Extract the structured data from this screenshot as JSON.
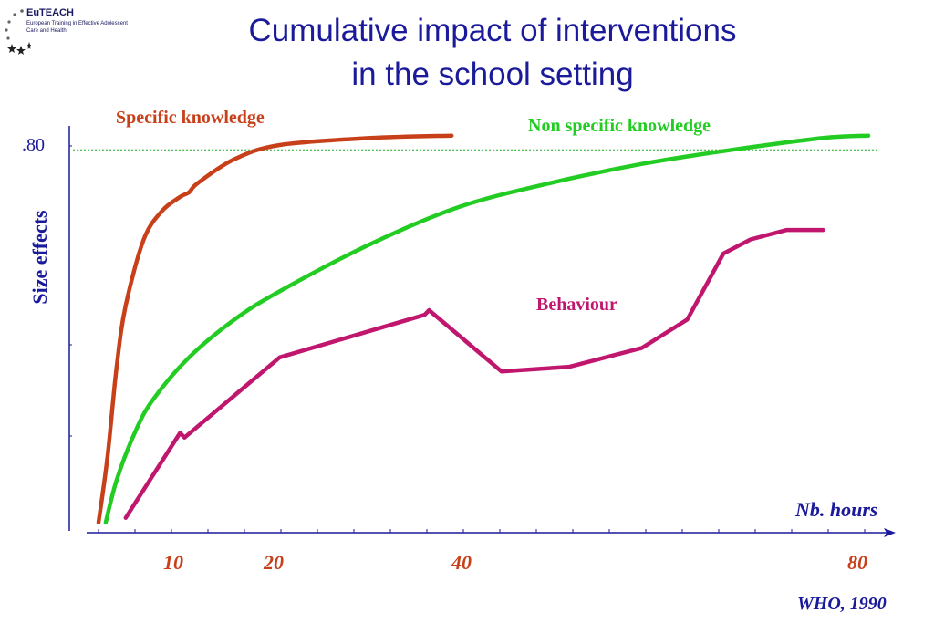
{
  "logo": {
    "title": "EuTEACH",
    "subtitle": "European Training in Effective Adolescent Care and Health"
  },
  "title_lines": [
    "Cumulative impact of interventions",
    "in the school setting"
  ],
  "source": "WHO, 1990",
  "colors": {
    "title": "#1a1a9a",
    "specific": "#c8401a",
    "nonspecific": "#22cc22",
    "behaviour": "#c0166e",
    "reference_line": "#22aa22"
  },
  "chart_data": {
    "type": "line",
    "title": "Cumulative impact of interventions in the school setting",
    "xlabel": "Nb. hours",
    "ylabel": "Size effects",
    "x_ticks": [
      10,
      20,
      40,
      80
    ],
    "y_ticks": [
      {
        "value": 0.8,
        "label": ".80"
      }
    ],
    "xlim": [
      0,
      85
    ],
    "ylim": [
      0,
      0.87
    ],
    "reference_line": {
      "y": 0.8,
      "style": "dotted"
    },
    "series": [
      {
        "name": "Specific knowledge",
        "color": "#c8401a",
        "points": [
          [
            0,
            0.01
          ],
          [
            1,
            0.15
          ],
          [
            2,
            0.34
          ],
          [
            3,
            0.47
          ],
          [
            5,
            0.61
          ],
          [
            7,
            0.67
          ],
          [
            9,
            0.7
          ],
          [
            10,
            0.71
          ],
          [
            11,
            0.73
          ],
          [
            15,
            0.78
          ],
          [
            20,
            0.81
          ],
          [
            30,
            0.825
          ],
          [
            39,
            0.83
          ]
        ]
      },
      {
        "name": "Non specific knowledge",
        "color": "#22cc22",
        "points": [
          [
            0.8,
            0.01
          ],
          [
            2,
            0.1
          ],
          [
            4,
            0.2
          ],
          [
            6,
            0.27
          ],
          [
            10,
            0.36
          ],
          [
            15,
            0.44
          ],
          [
            20,
            0.5
          ],
          [
            30,
            0.6
          ],
          [
            40,
            0.68
          ],
          [
            50,
            0.73
          ],
          [
            60,
            0.77
          ],
          [
            70,
            0.8
          ],
          [
            80,
            0.825
          ],
          [
            85,
            0.83
          ]
        ]
      },
      {
        "name": "Behaviour",
        "color": "#c0166e",
        "points": [
          [
            3,
            0.02
          ],
          [
            9,
            0.2
          ],
          [
            9.5,
            0.19
          ],
          [
            20,
            0.36
          ],
          [
            36,
            0.45
          ],
          [
            36.5,
            0.46
          ],
          [
            44.5,
            0.33
          ],
          [
            52,
            0.34
          ],
          [
            60,
            0.38
          ],
          [
            65,
            0.44
          ],
          [
            67,
            0.51
          ],
          [
            69,
            0.58
          ],
          [
            72,
            0.61
          ],
          [
            76,
            0.63
          ],
          [
            80,
            0.63
          ]
        ]
      }
    ]
  }
}
